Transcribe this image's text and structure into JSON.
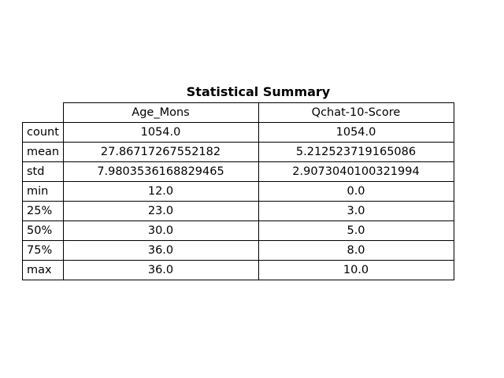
{
  "chart_data": {
    "type": "table",
    "title": "Statistical Summary",
    "columns": [
      "Age_Mons",
      "Qchat-10-Score"
    ],
    "rows": [
      {
        "label": "count",
        "values": [
          "1054.0",
          "1054.0"
        ]
      },
      {
        "label": "mean",
        "values": [
          "27.86717267552182",
          "5.212523719165086"
        ]
      },
      {
        "label": "std",
        "values": [
          "7.9803536168829465",
          "2.9073040100321994"
        ]
      },
      {
        "label": "min",
        "values": [
          "12.0",
          "0.0"
        ]
      },
      {
        "label": "25%",
        "values": [
          "23.0",
          "3.0"
        ]
      },
      {
        "label": "50%",
        "values": [
          "30.0",
          "5.0"
        ]
      },
      {
        "label": "75%",
        "values": [
          "36.0",
          "8.0"
        ]
      },
      {
        "label": "max",
        "values": [
          "36.0",
          "10.0"
        ]
      }
    ]
  }
}
